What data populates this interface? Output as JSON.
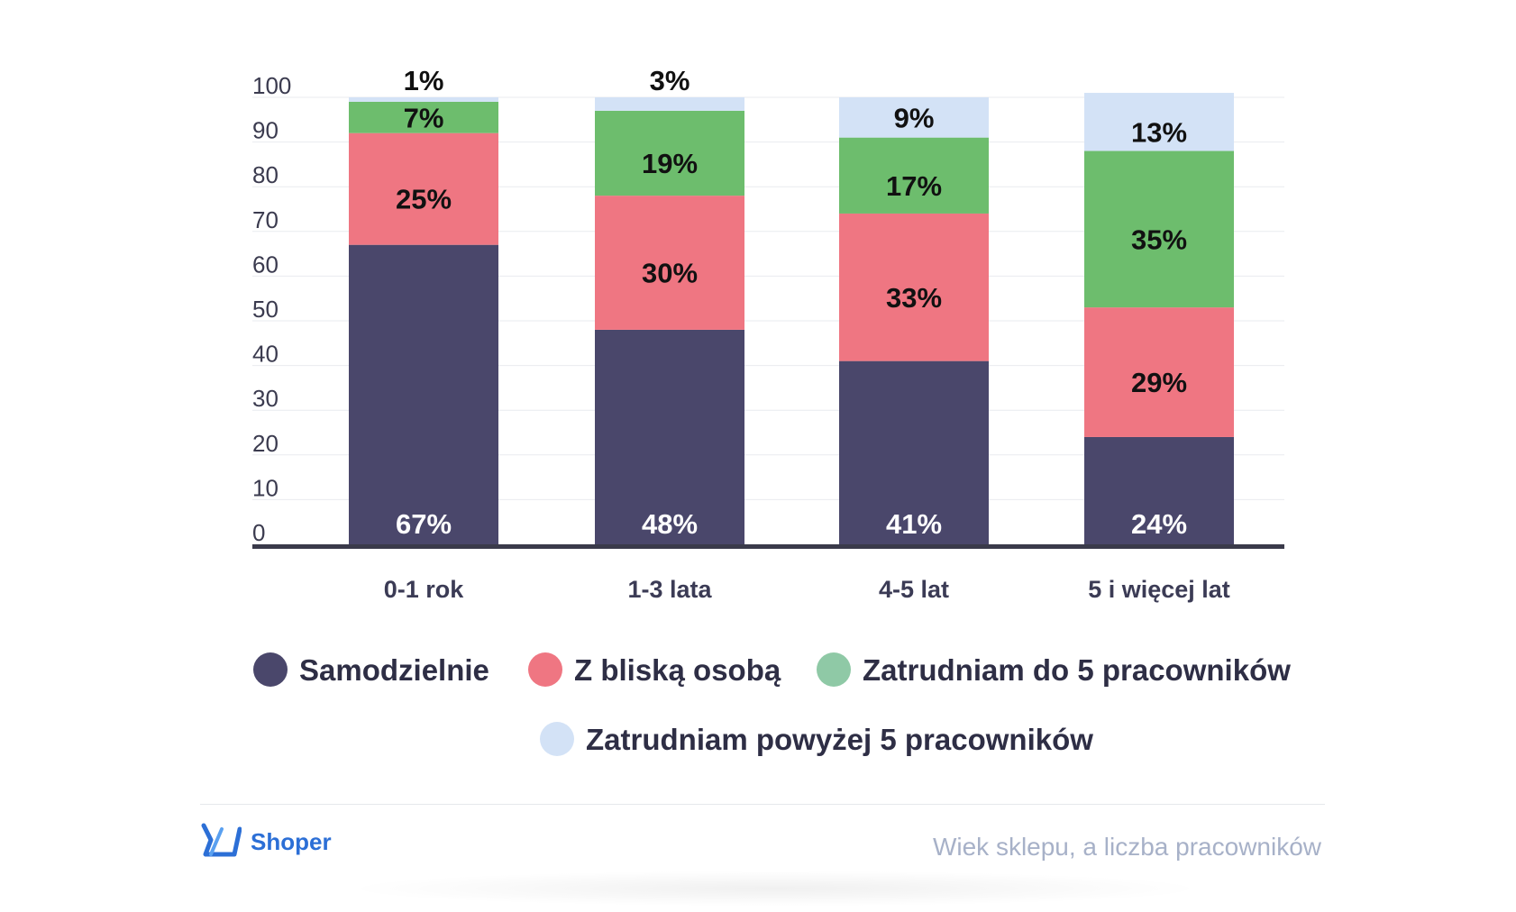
{
  "chart_data": {
    "type": "bar",
    "stacked": true,
    "categories": [
      "0-1 rok",
      "1-3 lata",
      "4-5 lat",
      "5 i więcej lat"
    ],
    "series": [
      {
        "name": "Samodzielnie",
        "color": "#4a476b",
        "values": [
          67,
          48,
          41,
          24
        ],
        "labels": [
          "67%",
          "48%",
          "41%",
          "24%"
        ],
        "label_color": "#ffffff"
      },
      {
        "name": "Z bliską osobą",
        "color": "#ef7682",
        "values": [
          25,
          30,
          33,
          29
        ],
        "labels": [
          "25%",
          "30%",
          "33%",
          "29%"
        ],
        "label_color": "#111111"
      },
      {
        "name": "Zatrudniam do 5 pracowników",
        "color": "#6dbd6d",
        "values": [
          7,
          19,
          17,
          35
        ],
        "labels": [
          "7%",
          "19%",
          "17%",
          "35%"
        ],
        "label_color": "#111111"
      },
      {
        "name": "Zatrudniam powyżej 5 pracowników",
        "color": "#d3e2f6",
        "values": [
          1,
          3,
          9,
          13
        ],
        "labels": [
          "1%",
          "3%",
          "9%",
          "13%"
        ],
        "label_color": "#111111"
      }
    ],
    "legend_marker_colors": [
      "#4a476b",
      "#ef7682",
      "#8fc9a6",
      "#d3e2f6"
    ],
    "yticks": [
      "0",
      "10",
      "20",
      "30",
      "40",
      "50",
      "60",
      "70",
      "80",
      "90",
      "100"
    ],
    "ylim": [
      0,
      100
    ],
    "grid": true,
    "legend_position": "bottom",
    "title": "",
    "xlabel": "",
    "ylabel": ""
  },
  "footer": {
    "brand": "Shoper",
    "brand_icon": "shoper-logo-icon",
    "caption": "Wiek sklepu, a liczba pracowników"
  }
}
